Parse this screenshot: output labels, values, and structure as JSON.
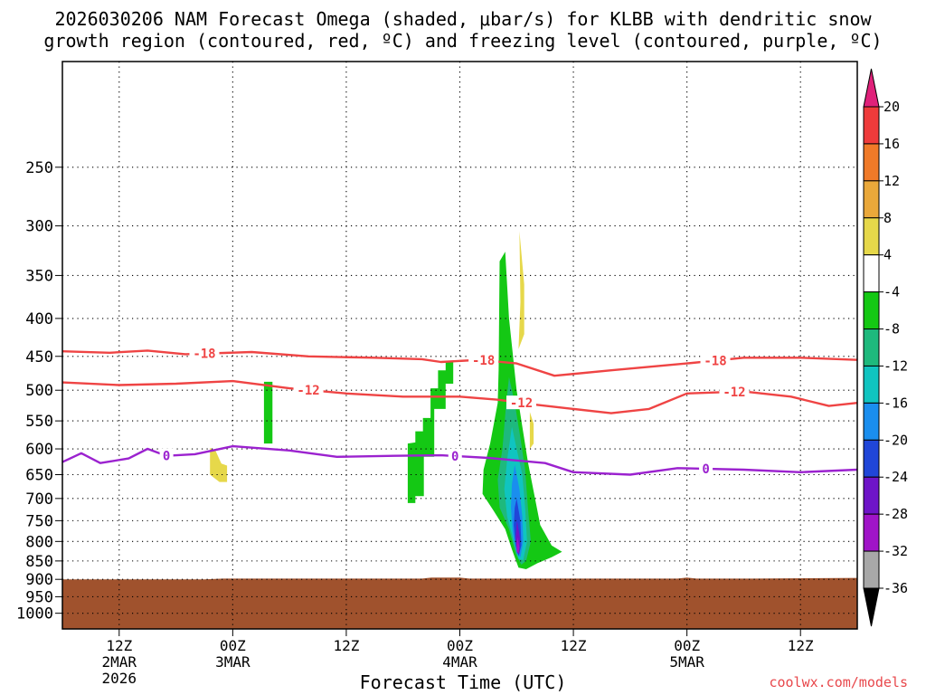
{
  "chart_data": {
    "type": "heatmap",
    "title": "2026030206 NAM Forecast Omega (shaded, μbar/s) for KLBB with dendritic snow",
    "subtitle": "growth region (contoured, red, ºC) and freezing level (contoured, purple, ºC)",
    "xlabel": "Forecast Time (UTC)",
    "credit": "coolwx.com/models",
    "ylim": [
      1050,
      180
    ],
    "y_scale": "log-pressure",
    "grid": true,
    "y_ticks": [
      250,
      300,
      350,
      400,
      450,
      500,
      550,
      600,
      650,
      700,
      750,
      800,
      850,
      900,
      950,
      1000
    ],
    "x_ticks": [
      {
        "hour": 6,
        "label": "12Z",
        "sub1": "2MAR",
        "sub2": "2026"
      },
      {
        "hour": 18,
        "label": "00Z",
        "sub1": "3MAR",
        "sub2": ""
      },
      {
        "hour": 30,
        "label": "12Z",
        "sub1": "",
        "sub2": ""
      },
      {
        "hour": 42,
        "label": "00Z",
        "sub1": "4MAR",
        "sub2": ""
      },
      {
        "hour": 54,
        "label": "12Z",
        "sub1": "",
        "sub2": ""
      },
      {
        "hour": 66,
        "label": "00Z",
        "sub1": "5MAR",
        "sub2": ""
      },
      {
        "hour": 78,
        "label": "12Z",
        "sub1": "",
        "sub2": ""
      }
    ],
    "colorbar": {
      "labels": [
        "20",
        "16",
        "12",
        "8",
        "4",
        "-4",
        "-8",
        "-12",
        "-16",
        "-20",
        "-24",
        "-28",
        "-32",
        "-36"
      ],
      "colors": [
        "#e0217a",
        "#ef3b3b",
        "#f07a28",
        "#eaa83a",
        "#e6d84a",
        "#ffffff",
        "#14c814",
        "#1eb97d",
        "#10c4c0",
        "#1a8eee",
        "#2046d8",
        "#6e14c8",
        "#a014c8",
        "#a8a8a8",
        "#000000"
      ]
    },
    "contours": [
      {
        "name": "-18",
        "color": "#ef4444",
        "label_hours": [
          15,
          44.5,
          69
        ],
        "points": [
          [
            0,
            443
          ],
          [
            5,
            445
          ],
          [
            9,
            442
          ],
          [
            13,
            447
          ],
          [
            20,
            444
          ],
          [
            26,
            450
          ],
          [
            33,
            452
          ],
          [
            38,
            454
          ],
          [
            40,
            458
          ],
          [
            44,
            455
          ],
          [
            48,
            460
          ],
          [
            52,
            478
          ],
          [
            58,
            470
          ],
          [
            66,
            460
          ],
          [
            72,
            452
          ],
          [
            78,
            452
          ],
          [
            84,
            455
          ]
        ]
      },
      {
        "name": "-12",
        "color": "#ef4444",
        "label_hours": [
          26,
          48.5,
          71
        ],
        "points": [
          [
            0,
            488
          ],
          [
            6,
            492
          ],
          [
            12,
            490
          ],
          [
            18,
            486
          ],
          [
            24,
            497
          ],
          [
            30,
            505
          ],
          [
            36,
            510
          ],
          [
            42,
            510
          ],
          [
            46,
            515
          ],
          [
            50,
            523
          ],
          [
            54,
            530
          ],
          [
            58,
            537
          ],
          [
            62,
            530
          ],
          [
            66,
            505
          ],
          [
            72,
            502
          ],
          [
            77,
            510
          ],
          [
            81,
            525
          ],
          [
            84,
            520
          ]
        ]
      },
      {
        "name": "0",
        "color": "#9b22cf",
        "label_hours": [
          11,
          41.5,
          68
        ],
        "points": [
          [
            0,
            625
          ],
          [
            2,
            608
          ],
          [
            4,
            627
          ],
          [
            7,
            618
          ],
          [
            9,
            600
          ],
          [
            11,
            613
          ],
          [
            14,
            610
          ],
          [
            18,
            595
          ],
          [
            24,
            603
          ],
          [
            29,
            615
          ],
          [
            35,
            613
          ],
          [
            40,
            612
          ],
          [
            45,
            617
          ],
          [
            51,
            627
          ],
          [
            54,
            645
          ],
          [
            60,
            650
          ],
          [
            65,
            637
          ],
          [
            72,
            640
          ],
          [
            78,
            645
          ],
          [
            84,
            640
          ]
        ]
      }
    ],
    "omega_regions": [
      {
        "value": 4,
        "color": "#e6d84a",
        "points": [
          [
            15.6,
            598
          ],
          [
            16.2,
            604
          ],
          [
            16.8,
            628
          ],
          [
            17.4,
            632
          ],
          [
            17.4,
            665
          ],
          [
            16.6,
            665
          ],
          [
            15.6,
            650
          ]
        ]
      },
      {
        "value": -4,
        "color": "#14c814",
        "points": [
          [
            21.3,
            487
          ],
          [
            22.2,
            487
          ],
          [
            22.2,
            590
          ],
          [
            21.3,
            590
          ]
        ]
      },
      {
        "value": -4,
        "color": "#14c814",
        "points": [
          [
            36.5,
            590
          ],
          [
            37.3,
            588
          ],
          [
            37.3,
            568
          ],
          [
            38.1,
            568
          ],
          [
            38.1,
            545
          ],
          [
            38.9,
            545
          ],
          [
            38.9,
            497
          ],
          [
            39.7,
            497
          ],
          [
            39.7,
            470
          ],
          [
            40.5,
            470
          ],
          [
            40.5,
            458
          ],
          [
            41.3,
            458
          ],
          [
            41.3,
            490
          ],
          [
            40.5,
            490
          ],
          [
            40.5,
            530
          ],
          [
            39.3,
            530
          ],
          [
            39.3,
            615
          ],
          [
            38.2,
            615
          ],
          [
            38.2,
            695
          ],
          [
            37.3,
            695
          ],
          [
            37.3,
            710
          ],
          [
            36.5,
            710
          ]
        ]
      },
      {
        "value": -4,
        "color": "#14c814",
        "points": [
          [
            46.2,
            335
          ],
          [
            46.8,
            325
          ],
          [
            47.2,
            400
          ],
          [
            48.0,
            500
          ],
          [
            48.6,
            560
          ],
          [
            49.2,
            625
          ],
          [
            50.5,
            760
          ],
          [
            51.7,
            810
          ],
          [
            52.8,
            826
          ],
          [
            51.7,
            840
          ],
          [
            50.2,
            856
          ],
          [
            49.0,
            872
          ],
          [
            48.2,
            868
          ],
          [
            47.5,
            820
          ],
          [
            46.8,
            770
          ],
          [
            45.5,
            725
          ],
          [
            44.4,
            690
          ],
          [
            44.5,
            640
          ],
          [
            45.2,
            590
          ],
          [
            46.0,
            520
          ],
          [
            46.1,
            470
          ]
        ]
      },
      {
        "value": -8,
        "color": "#1eb97d",
        "points": [
          [
            47.2,
            480
          ],
          [
            47.8,
            520
          ],
          [
            48.4,
            580
          ],
          [
            48.9,
            640
          ],
          [
            49.2,
            720
          ],
          [
            49.5,
            800
          ],
          [
            49.0,
            850
          ],
          [
            48.5,
            860
          ],
          [
            47.9,
            830
          ],
          [
            47.2,
            770
          ],
          [
            46.2,
            720
          ],
          [
            46.0,
            660
          ],
          [
            46.5,
            600
          ],
          [
            46.9,
            520
          ]
        ]
      },
      {
        "value": -12,
        "color": "#10c4c0",
        "points": [
          [
            47.5,
            560
          ],
          [
            48.0,
            600
          ],
          [
            48.6,
            650
          ],
          [
            48.9,
            720
          ],
          [
            49.1,
            800
          ],
          [
            48.7,
            848
          ],
          [
            48.2,
            845
          ],
          [
            47.7,
            800
          ],
          [
            47.0,
            740
          ],
          [
            46.7,
            680
          ],
          [
            47.0,
            620
          ]
        ]
      },
      {
        "value": -16,
        "color": "#1a8eee",
        "points": [
          [
            47.8,
            630
          ],
          [
            48.3,
            680
          ],
          [
            48.6,
            740
          ],
          [
            48.7,
            800
          ],
          [
            48.4,
            840
          ],
          [
            48.0,
            830
          ],
          [
            47.6,
            780
          ],
          [
            47.4,
            720
          ],
          [
            47.5,
            670
          ]
        ]
      },
      {
        "value": -20,
        "color": "#2046d8",
        "points": [
          [
            48.0,
            700
          ],
          [
            48.4,
            750
          ],
          [
            48.5,
            810
          ],
          [
            48.2,
            838
          ],
          [
            47.9,
            810
          ],
          [
            47.7,
            760
          ],
          [
            47.8,
            720
          ]
        ]
      },
      {
        "value": -24,
        "color": "#6e14c8",
        "points": [
          [
            48.05,
            750
          ],
          [
            48.35,
            790
          ],
          [
            48.3,
            832
          ],
          [
            48.05,
            828
          ],
          [
            47.9,
            790
          ]
        ]
      },
      {
        "value": -28,
        "color": "#a014c8",
        "points": [
          [
            48.1,
            790
          ],
          [
            48.3,
            815
          ],
          [
            48.2,
            830
          ],
          [
            48.0,
            825
          ],
          [
            48.0,
            805
          ]
        ]
      },
      {
        "value": 4,
        "color": "#e6d84a",
        "points": [
          [
            48.3,
            305
          ],
          [
            48.8,
            360
          ],
          [
            48.8,
            420
          ],
          [
            48.2,
            440
          ],
          [
            48.4,
            380
          ]
        ]
      },
      {
        "value": 4,
        "color": "#e6d84a",
        "points": [
          [
            49.4,
            535
          ],
          [
            49.8,
            555
          ],
          [
            49.8,
            590
          ],
          [
            49.4,
            600
          ]
        ]
      }
    ],
    "terrain": {
      "color": "#a0522d",
      "points": [
        [
          0,
          900
        ],
        [
          15,
          900
        ],
        [
          17,
          898
        ],
        [
          38,
          898
        ],
        [
          39,
          895
        ],
        [
          42,
          895
        ],
        [
          43,
          898
        ],
        [
          65,
          898
        ],
        [
          66,
          895
        ],
        [
          67,
          898
        ],
        [
          73,
          898
        ],
        [
          84,
          896
        ]
      ]
    }
  }
}
